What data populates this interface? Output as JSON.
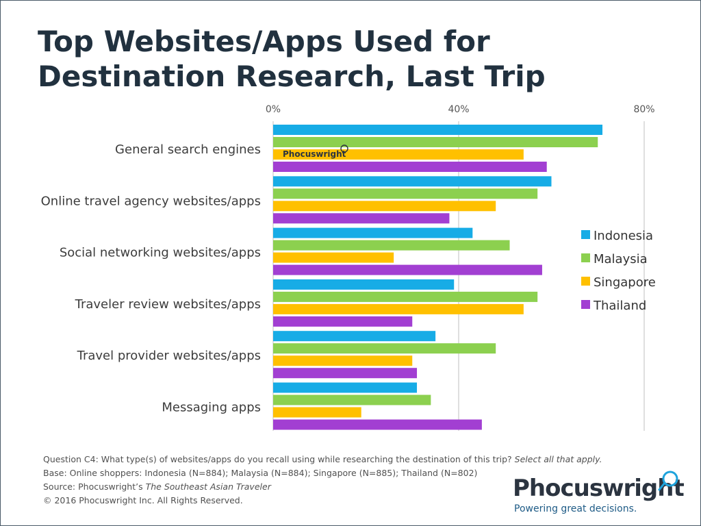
{
  "title": "Top Websites/Apps Used for Destination Research, Last Trip",
  "chart_data": {
    "type": "bar",
    "orientation": "horizontal",
    "categories": [
      "General search engines",
      "Online travel agency websites/apps",
      "Social networking websites/apps",
      "Traveler review websites/apps",
      "Travel provider websites/apps",
      "Messaging apps"
    ],
    "series": [
      {
        "name": "Indonesia",
        "color": "#17ACE6",
        "values": [
          71,
          60,
          43,
          39,
          35,
          31
        ]
      },
      {
        "name": "Malaysia",
        "color": "#8CD04F",
        "values": [
          70,
          57,
          51,
          57,
          48,
          34
        ]
      },
      {
        "name": "Singapore",
        "color": "#FFC000",
        "values": [
          54,
          48,
          26,
          54,
          30,
          19
        ]
      },
      {
        "name": "Thailand",
        "color": "#A23FD2",
        "values": [
          59,
          38,
          58,
          30,
          31,
          45
        ]
      }
    ],
    "xlim": [
      0,
      80
    ],
    "xticks": [
      0,
      40,
      80
    ],
    "xtick_labels": [
      "0%",
      "40%",
      "80%"
    ],
    "xtick_position": "top",
    "grid": true,
    "legend_position": "right"
  },
  "watermark": {
    "text": "Phocuswright"
  },
  "notes": {
    "question_prefix": "Question C4: What type(s) of websites/apps do you recall using while researching the destination of this trip? ",
    "question_italic": "Select all that apply.",
    "base": "Base: Online shoppers: Indonesia (N=884); Malaysia (N=884); Singapore (N=885); Thailand (N=802)",
    "source_prefix": "Source: Phocuswright’s ",
    "source_italic": "The Southeast Asian Traveler",
    "copyright": "© 2016 Phocuswright Inc. All Rights Reserved."
  },
  "logo": {
    "name": "Phocuswright",
    "tagline": "Powering great decisions."
  },
  "colors": {
    "title": "#21313f",
    "logo_accent": "#1ea3dc",
    "tagline": "#1e5b86"
  }
}
